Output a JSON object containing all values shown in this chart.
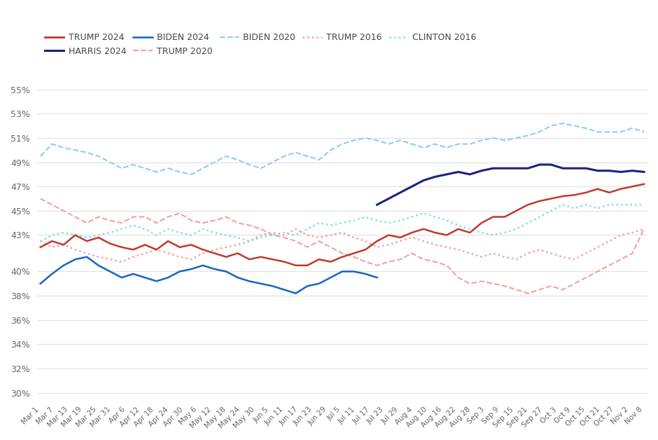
{
  "series": {
    "TRUMP 2024": {
      "color": "#c0392b",
      "linestyle": "solid",
      "linewidth": 1.8,
      "values": [
        42.0,
        42.5,
        42.2,
        43.0,
        42.5,
        42.8,
        42.3,
        42.0,
        41.8,
        42.2,
        41.8,
        42.5,
        42.0,
        42.2,
        41.8,
        41.5,
        41.2,
        41.5,
        41.0,
        41.2,
        41.0,
        40.8,
        40.5,
        40.5,
        41.0,
        40.8,
        41.2,
        41.5,
        41.8,
        42.5,
        43.0,
        42.8,
        43.2,
        43.5,
        43.2,
        43.0,
        43.5,
        43.2,
        44.0,
        44.5,
        44.5,
        45.0,
        45.5,
        45.8,
        46.0,
        46.2,
        46.3,
        46.5,
        46.8,
        46.5,
        46.8,
        47.0,
        47.2
      ]
    },
    "HARRIS 2024": {
      "color": "#1a237e",
      "linestyle": "solid",
      "linewidth": 2.2,
      "values": [
        null,
        null,
        null,
        null,
        null,
        null,
        null,
        null,
        null,
        null,
        null,
        null,
        null,
        null,
        null,
        null,
        null,
        null,
        null,
        null,
        null,
        null,
        null,
        null,
        null,
        null,
        null,
        null,
        null,
        45.5,
        46.0,
        46.5,
        47.0,
        47.5,
        47.8,
        48.0,
        48.2,
        48.0,
        48.3,
        48.5,
        48.5,
        48.5,
        48.5,
        48.8,
        48.8,
        48.5,
        48.5,
        48.5,
        48.3,
        48.3,
        48.2,
        48.3,
        48.2
      ]
    },
    "BIDEN 2024": {
      "color": "#1565c0",
      "linestyle": "solid",
      "linewidth": 1.8,
      "values": [
        39.0,
        39.8,
        40.5,
        41.0,
        41.2,
        40.5,
        40.0,
        39.5,
        39.8,
        39.5,
        39.2,
        39.5,
        40.0,
        40.2,
        40.5,
        40.2,
        40.0,
        39.5,
        39.2,
        39.0,
        38.8,
        38.5,
        38.2,
        38.8,
        39.0,
        39.5,
        40.0,
        40.0,
        39.8,
        39.5,
        null,
        null,
        null,
        null,
        null,
        null,
        null,
        null,
        null,
        null,
        null,
        null,
        null,
        null,
        null,
        null,
        null,
        null,
        null,
        null,
        null,
        null,
        null
      ]
    },
    "TRUMP 2020": {
      "color": "#f4a0a0",
      "linestyle": "dashed",
      "linewidth": 1.5,
      "values": [
        46.0,
        45.5,
        45.0,
        44.5,
        44.0,
        44.5,
        44.2,
        44.0,
        44.5,
        44.5,
        44.0,
        44.5,
        44.8,
        44.2,
        44.0,
        44.2,
        44.5,
        44.0,
        43.8,
        43.5,
        43.0,
        42.8,
        42.5,
        42.0,
        42.5,
        42.0,
        41.5,
        41.2,
        40.8,
        40.5,
        40.8,
        41.0,
        41.5,
        41.0,
        40.8,
        40.5,
        39.5,
        39.0,
        39.2,
        39.0,
        38.8,
        38.5,
        38.2,
        38.5,
        38.8,
        38.5,
        39.0,
        39.5,
        40.0,
        40.5,
        41.0,
        41.5,
        43.5
      ]
    },
    "BIDEN 2020": {
      "color": "#90caf9",
      "linestyle": "dashed",
      "linewidth": 1.5,
      "values": [
        49.5,
        50.5,
        50.2,
        50.0,
        49.8,
        49.5,
        49.0,
        48.5,
        48.8,
        48.5,
        48.2,
        48.5,
        48.2,
        48.0,
        48.5,
        49.0,
        49.5,
        49.2,
        48.8,
        48.5,
        49.0,
        49.5,
        49.8,
        49.5,
        49.2,
        50.0,
        50.5,
        50.8,
        51.0,
        50.8,
        50.5,
        50.8,
        50.5,
        50.2,
        50.5,
        50.2,
        50.5,
        50.5,
        50.8,
        51.0,
        50.8,
        51.0,
        51.2,
        51.5,
        52.0,
        52.2,
        52.0,
        51.8,
        51.5,
        51.5,
        51.5,
        51.8,
        51.5
      ]
    },
    "TRUMP 2016": {
      "color": "#f4a0a0",
      "linestyle": "dotted",
      "linewidth": 1.8,
      "values": [
        null,
        null,
        null,
        null,
        null,
        null,
        null,
        null,
        null,
        null,
        null,
        null,
        null,
        null,
        null,
        null,
        null,
        null,
        null,
        null,
        null,
        null,
        null,
        null,
        null,
        null,
        null,
        null,
        null,
        null,
        null,
        null,
        null,
        null,
        null,
        null,
        null,
        null,
        null,
        null,
        null,
        null,
        null,
        null,
        null,
        null,
        null,
        null,
        null,
        null,
        null,
        null,
        null
      ]
    },
    "CLINTON 2016": {
      "color": "#80deea",
      "linestyle": "dotted",
      "linewidth": 1.8,
      "values": [
        null,
        null,
        null,
        null,
        null,
        null,
        null,
        null,
        null,
        null,
        null,
        null,
        null,
        null,
        null,
        null,
        null,
        null,
        null,
        null,
        null,
        null,
        null,
        null,
        null,
        null,
        null,
        null,
        null,
        null,
        null,
        null,
        null,
        null,
        null,
        null,
        null,
        null,
        null,
        null,
        null,
        null,
        null,
        null,
        null,
        null,
        null,
        null,
        null,
        null,
        null,
        null,
        null
      ]
    }
  },
  "series_ordered": [
    "BIDEN 2020",
    "TRUMP 2020",
    "TRUMP 2016",
    "CLINTON 2016",
    "BIDEN 2024",
    "TRUMP 2024",
    "HARRIS 2024"
  ],
  "trump2016_values": [
    42.5,
    42.0,
    42.2,
    41.8,
    41.5,
    41.2,
    41.0,
    40.8,
    41.2,
    41.5,
    41.8,
    41.5,
    41.2,
    41.0,
    41.5,
    41.8,
    42.0,
    42.2,
    42.5,
    43.0,
    43.2,
    43.0,
    43.5,
    43.0,
    42.8,
    43.0,
    43.2,
    42.8,
    42.5,
    42.0,
    42.2,
    42.5,
    42.8,
    42.5,
    42.2,
    42.0,
    41.8,
    41.5,
    41.2,
    41.5,
    41.2,
    41.0,
    41.5,
    41.8,
    41.5,
    41.2,
    41.0,
    41.5,
    42.0,
    42.5,
    43.0,
    43.2,
    43.5
  ],
  "clinton2016_values": [
    42.5,
    43.0,
    43.2,
    43.0,
    42.8,
    43.0,
    43.2,
    43.5,
    43.8,
    43.5,
    43.0,
    43.5,
    43.2,
    43.0,
    43.5,
    43.2,
    43.0,
    42.8,
    42.5,
    42.8,
    43.0,
    43.2,
    43.0,
    43.5,
    44.0,
    43.8,
    44.0,
    44.2,
    44.5,
    44.2,
    44.0,
    44.2,
    44.5,
    44.8,
    44.5,
    44.2,
    43.8,
    43.5,
    43.2,
    43.0,
    43.2,
    43.5,
    44.0,
    44.5,
    45.0,
    45.5,
    45.2,
    45.5,
    45.2,
    45.5,
    45.5,
    45.5,
    45.5
  ],
  "x_labels": [
    "Mar 1",
    "Mar 7",
    "Mar 13",
    "Mar 19",
    "Mar 25",
    "Mar 31",
    "Apr 6",
    "Apr 12",
    "Apr 18",
    "Apr 24",
    "Apr 30",
    "May 6",
    "May 12",
    "May 18",
    "May 24",
    "May 30",
    "Jun 5",
    "Jun 11",
    "Jun 17",
    "Jun 23",
    "Jun 29",
    "Jul 5",
    "Jul 11",
    "Jul 17",
    "Jul 23",
    "Jul 29",
    "Aug 4",
    "Aug 10",
    "Aug 16",
    "Aug 22",
    "Aug 28",
    "Sep 3",
    "Sep 9",
    "Sep 15",
    "Sep 21",
    "Sep 27",
    "Oct 3",
    "Oct 9",
    "Oct 15",
    "Oct 21",
    "Oct 27",
    "Nov 2",
    "Nov 8"
  ],
  "yticks": [
    30,
    32,
    34,
    36,
    38,
    40,
    43,
    45,
    47,
    49,
    51,
    53,
    55
  ],
  "ylim": [
    29.5,
    56.5
  ],
  "background_color": "#ffffff",
  "grid_color": "#e0e0e0",
  "legend_entries": [
    {
      "label": "TRUMP 2024",
      "color": "#c0392b",
      "linestyle": "solid",
      "lw": 2.0
    },
    {
      "label": "HARRIS 2024",
      "color": "#1a237e",
      "linestyle": "solid",
      "lw": 2.2
    },
    {
      "label": "BIDEN 2024",
      "color": "#1565c0",
      "linestyle": "solid",
      "lw": 1.8
    },
    {
      "label": "TRUMP 2020",
      "color": "#f4a0a0",
      "linestyle": "dashed",
      "lw": 1.5
    },
    {
      "label": "BIDEN 2020",
      "color": "#90caf9",
      "linestyle": "dashed",
      "lw": 1.5
    },
    {
      "label": "TRUMP 2016",
      "color": "#f4a0a0",
      "linestyle": "dotted",
      "lw": 1.8
    },
    {
      "label": "CLINTON 2016",
      "color": "#80deea",
      "linestyle": "dotted",
      "lw": 1.8
    }
  ]
}
